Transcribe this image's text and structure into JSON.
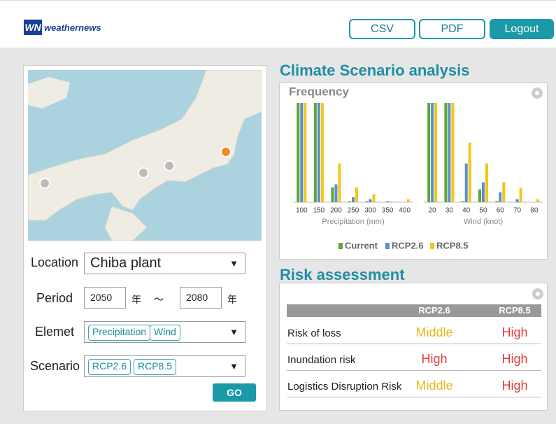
{
  "header": {
    "logo_mark": "WN",
    "logo": "weathernews",
    "buttons": [
      "CSV",
      "PDF",
      "Logout"
    ]
  },
  "form": {
    "location_label": "Location",
    "location": "Chiba plant",
    "period_label": "Period",
    "period_start": 2050,
    "period_end": 2080,
    "year_unit": "年",
    "range_sep": "～",
    "element_label": "Elemet",
    "elements": [
      "Precipitation",
      "Wind"
    ],
    "scenario_label": "Scenario",
    "scenarios": [
      "RCP2.6",
      "RCP8.5"
    ],
    "go": "GO"
  },
  "analysis": {
    "title": "Climate Scenario analysis",
    "subtitle": "Frequency"
  },
  "chart_data": [
    {
      "type": "bar",
      "xlabel": "Precipitation (mm)",
      "categories": [
        "100",
        "150",
        "200",
        "250",
        "300",
        "350",
        "400"
      ],
      "ylim": [
        0,
        100
      ],
      "series": [
        {
          "name": "Current",
          "color": "#5aa832",
          "values": [
            100,
            100,
            15,
            1,
            1,
            0,
            0
          ]
        },
        {
          "name": "RCP2.6",
          "color": "#5b8fd0",
          "values": [
            100,
            100,
            18,
            5,
            3,
            1,
            0
          ]
        },
        {
          "name": "RCP8.5",
          "color": "#f5c518",
          "values": [
            100,
            100,
            39,
            15,
            8,
            1,
            3
          ]
        }
      ]
    },
    {
      "type": "bar",
      "xlabel": "Wind (knot)",
      "categories": [
        "20",
        "30",
        "40",
        "50",
        "60",
        "70",
        "80"
      ],
      "ylim": [
        0,
        100
      ],
      "series": [
        {
          "name": "Current",
          "color": "#5aa832",
          "values": [
            100,
            100,
            1,
            13,
            1,
            0,
            0
          ]
        },
        {
          "name": "RCP2.6",
          "color": "#5b8fd0",
          "values": [
            100,
            100,
            39,
            20,
            10,
            3,
            0
          ]
        },
        {
          "name": "RCP8.5",
          "color": "#f5c518",
          "values": [
            100,
            100,
            60,
            39,
            20,
            14,
            3
          ]
        }
      ]
    }
  ],
  "risk": {
    "title": "Risk assessment",
    "columns": [
      "RCP2.6",
      "RCP8.5"
    ],
    "rows": [
      [
        "Risk of loss",
        "Middle",
        "High"
      ],
      [
        "Inundation risk",
        "High",
        "High"
      ],
      [
        "Logistics Disruption Risk",
        "Middle",
        "High"
      ]
    ],
    "level_colors": {
      "Middle": "#e8b820",
      "High": "#e03c3c"
    }
  }
}
